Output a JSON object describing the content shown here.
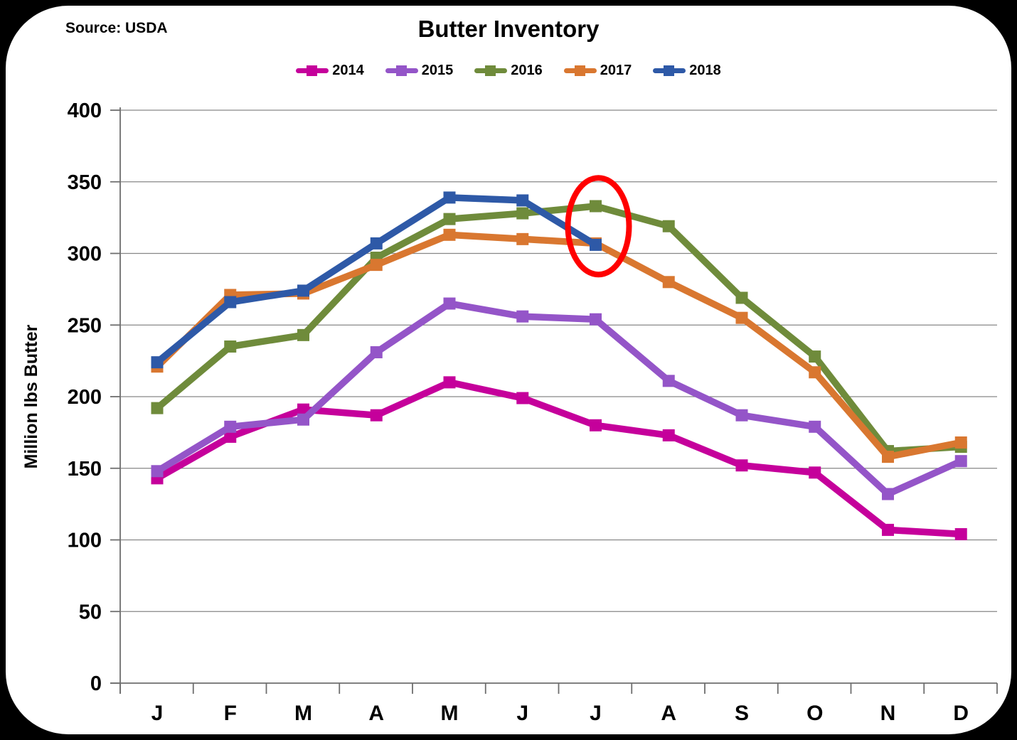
{
  "chart_data": {
    "type": "line",
    "title": "Butter Inventory",
    "source": "Source: USDA",
    "ylabel": "Million lbs Butter",
    "xlabel": "",
    "categories": [
      "J",
      "F",
      "M",
      "A",
      "M",
      "J",
      "J",
      "A",
      "S",
      "O",
      "N",
      "D"
    ],
    "ylim": [
      0,
      400
    ],
    "y_ticks": [
      0,
      50,
      100,
      150,
      200,
      250,
      300,
      350,
      400
    ],
    "grid": true,
    "legend_position": "top",
    "axis_color": "#6e6e6e",
    "gridline_color": "#878787",
    "series": [
      {
        "name": "2014",
        "color": "#C5009B",
        "values": [
          143,
          172,
          191,
          187,
          210,
          199,
          180,
          173,
          152,
          147,
          107,
          104
        ]
      },
      {
        "name": "2015",
        "color": "#9455C8",
        "values": [
          148,
          179,
          184,
          231,
          265,
          256,
          254,
          211,
          187,
          179,
          132,
          155
        ]
      },
      {
        "name": "2016",
        "color": "#6F8B3B",
        "values": [
          192,
          235,
          243,
          297,
          324,
          328,
          333,
          319,
          269,
          228,
          162,
          165
        ]
      },
      {
        "name": "2017",
        "color": "#D97730",
        "values": [
          221,
          271,
          272,
          292,
          313,
          310,
          307,
          280,
          255,
          217,
          158,
          168
        ]
      },
      {
        "name": "2018",
        "color": "#2E59A7",
        "values": [
          224,
          266,
          274,
          307,
          339,
          337,
          306,
          null,
          null,
          null,
          null,
          null
        ]
      }
    ],
    "annotation": {
      "shape": "ellipse",
      "color": "#FF0000",
      "month_index": 6,
      "center_value": 319
    }
  }
}
